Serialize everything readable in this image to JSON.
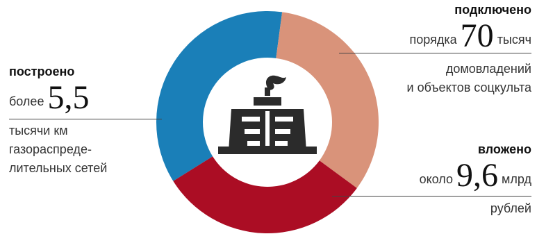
{
  "chart_data": {
    "type": "pie",
    "style": "donut",
    "segments": [
      {
        "category": "подключено",
        "share": 0.36,
        "color": "#1a7fb8"
      },
      {
        "category": "вложено",
        "share": 0.33,
        "color": "#d9937a"
      },
      {
        "category": "построено",
        "share": 0.31,
        "color": "#ab0d24"
      }
    ],
    "center_icon": "gas-well-tower-icon",
    "icon_color": "#2b2b2b"
  },
  "left": {
    "heading": "построено",
    "prefix": "более",
    "value": "5,5",
    "lines": [
      "тысячи км",
      "газораспреде-",
      "лительных сетей"
    ]
  },
  "top_right": {
    "heading": "подключено",
    "prefix": "порядка",
    "value": "70",
    "unit": "тысяч",
    "lines": [
      "домовладений",
      "и объектов соцкульта"
    ]
  },
  "bottom_right": {
    "heading": "вложено",
    "prefix": "около",
    "value": "9,6",
    "unit": "млрд",
    "lines": [
      "рублей"
    ]
  }
}
